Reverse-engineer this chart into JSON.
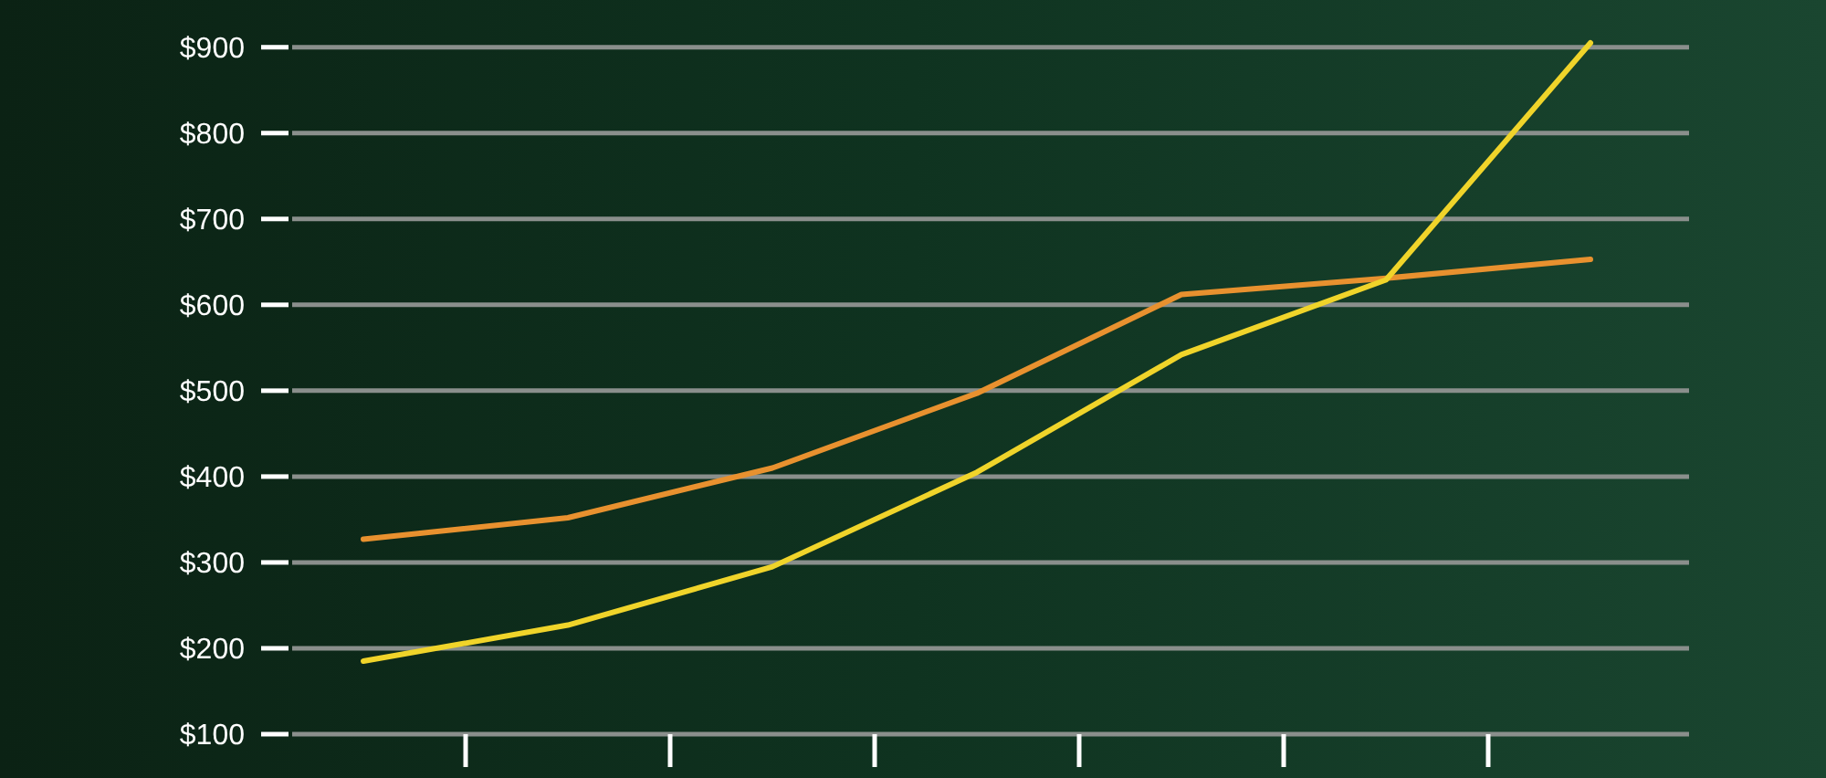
{
  "chart_data": {
    "type": "line",
    "categories": [
      null,
      null,
      null,
      null,
      null,
      null,
      null
    ],
    "series": [
      {
        "color": "#e8912f",
        "values": [
          327,
          352,
          410,
          497,
          612,
          631,
          653
        ]
      },
      {
        "color": "#f0d42a",
        "values": [
          185,
          227,
          295,
          405,
          542,
          629,
          905
        ]
      }
    ],
    "ylim": [
      100,
      955
    ],
    "yticks": [
      {
        "value": 100,
        "label": "$100"
      },
      {
        "value": 200,
        "label": "$200"
      },
      {
        "value": 300,
        "label": "$300"
      },
      {
        "value": 400,
        "label": "$400"
      },
      {
        "value": 500,
        "label": "$500"
      },
      {
        "value": 600,
        "label": "$600"
      },
      {
        "value": 700,
        "label": "$700"
      },
      {
        "value": 800,
        "label": "$800"
      },
      {
        "value": 900,
        "label": "$900"
      }
    ],
    "grid": "y",
    "marker": "none",
    "line_style": "solid"
  }
}
